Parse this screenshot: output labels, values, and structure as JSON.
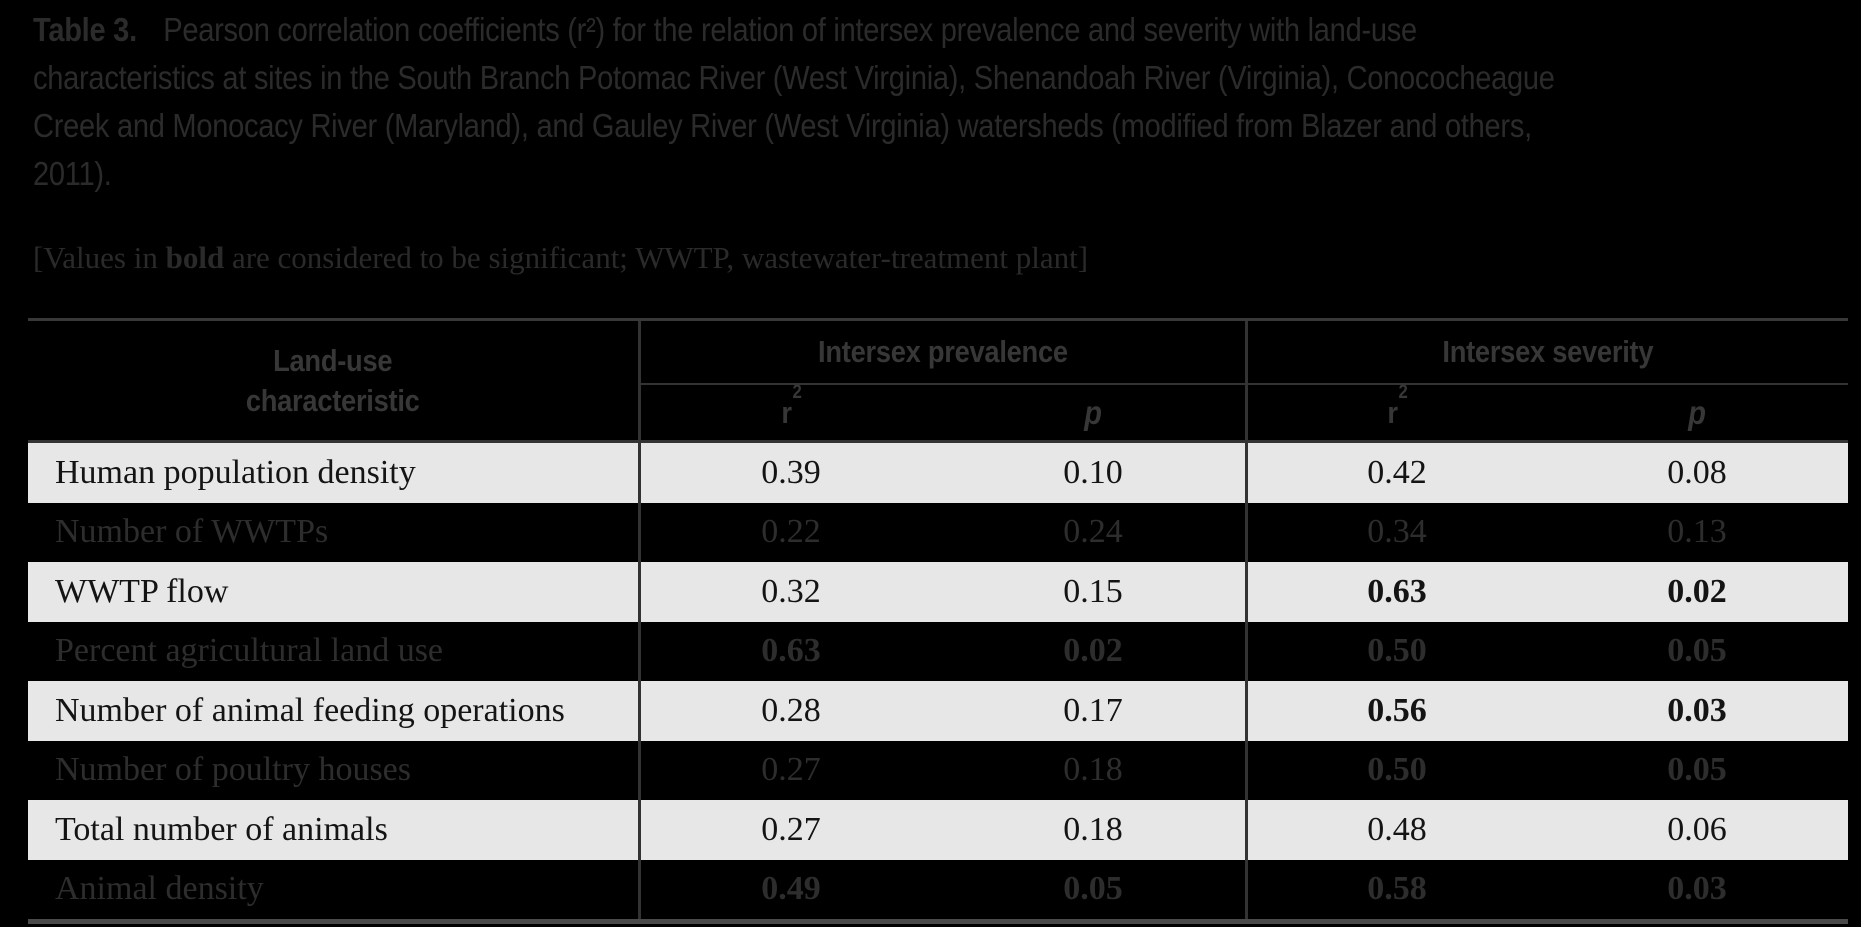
{
  "title": {
    "label": "Table 3.",
    "text": "Pearson correlation coefficients (r²) for the relation of intersex prevalence and severity with land-use characteristics at sites in the South Branch Potomac River (West Virginia), Shenandoah River (Virginia), Conococheague Creek and Monocacy River (Maryland), and Gauley River (West Virginia) watersheds (modified from Blazer and others, 2011)."
  },
  "note": {
    "prefix": "[Values in ",
    "bold_word": "bold",
    "suffix": " are considered to be significant; WWTP, wastewater-treatment plant]"
  },
  "table": {
    "col1_line1": "Land-use",
    "col1_line2": "characteristic",
    "group1_label": "Intersex prevalence",
    "group2_label": "Intersex severity",
    "sub_r_base": "r",
    "sub_r_sup": "2",
    "sub_p": "p",
    "rows": [
      {
        "label": "Human population density",
        "values": [
          "0.39",
          "0.10",
          "0.42",
          "0.08"
        ],
        "bold": [
          false,
          false,
          false,
          false
        ],
        "shaded": true
      },
      {
        "label": "Number of WWTPs",
        "values": [
          "0.22",
          "0.24",
          "0.34",
          "0.13"
        ],
        "bold": [
          false,
          false,
          false,
          false
        ],
        "shaded": false
      },
      {
        "label": "WWTP flow",
        "values": [
          "0.32",
          "0.15",
          "0.63",
          "0.02"
        ],
        "bold": [
          false,
          false,
          true,
          true
        ],
        "shaded": true
      },
      {
        "label": "Percent agricultural land use",
        "values": [
          "0.63",
          "0.02",
          "0.50",
          "0.05"
        ],
        "bold": [
          true,
          true,
          true,
          true
        ],
        "shaded": false
      },
      {
        "label": "Number of animal feeding operations",
        "values": [
          "0.28",
          "0.17",
          "0.56",
          "0.03"
        ],
        "bold": [
          false,
          false,
          true,
          true
        ],
        "shaded": true
      },
      {
        "label": "Number of poultry houses",
        "values": [
          "0.27",
          "0.18",
          "0.50",
          "0.05"
        ],
        "bold": [
          false,
          false,
          true,
          true
        ],
        "shaded": false
      },
      {
        "label": "Total number of animals",
        "values": [
          "0.27",
          "0.18",
          "0.48",
          "0.06"
        ],
        "bold": [
          false,
          false,
          false,
          false
        ],
        "shaded": true
      },
      {
        "label": "Animal density",
        "values": [
          "0.49",
          "0.05",
          "0.58",
          "0.03"
        ],
        "bold": [
          true,
          true,
          true,
          true
        ],
        "shaded": false
      }
    ]
  },
  "colors": {
    "page_background": "#000000",
    "caption_text": "#2b2b2b",
    "header_text": "#373737",
    "shaded_row_background": "#e7e7e7",
    "shaded_row_text": "#141414",
    "dark_row_text": "#2d2d2d",
    "rule_top": "#383838",
    "rule_bottom": "#4a4a4a",
    "divider": "#333333"
  }
}
